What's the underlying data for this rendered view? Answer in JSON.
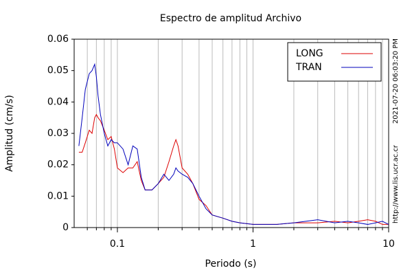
{
  "chart_data": {
    "type": "line",
    "title": "Espectro de amplitud Archivo",
    "xlabel": "Periodo (s)",
    "ylabel": "Amplitud (cm/s)",
    "annotations": [
      "2021-07-20 06:03:20 PM",
      "http://www.lis.ucr.ac.cr"
    ],
    "xscale": "log",
    "grid": true,
    "legend": "upper right",
    "xlim": [
      0.048,
      10
    ],
    "xticks": [
      0.1,
      1,
      10
    ],
    "xminorticks": [
      0.06,
      0.07,
      0.08,
      0.09,
      0.2,
      0.3,
      0.4,
      0.5,
      0.6,
      0.7,
      0.8,
      0.9,
      2,
      3,
      4,
      5,
      6,
      7,
      8,
      9
    ],
    "ylim": [
      0,
      0.06
    ],
    "yticks": [
      0,
      0.01,
      0.02,
      0.03,
      0.04,
      0.05,
      0.06
    ],
    "x": [
      0.052,
      0.055,
      0.058,
      0.062,
      0.065,
      0.068,
      0.07,
      0.072,
      0.075,
      0.08,
      0.085,
      0.09,
      0.095,
      0.1,
      0.11,
      0.12,
      0.13,
      0.14,
      0.15,
      0.16,
      0.18,
      0.2,
      0.22,
      0.24,
      0.26,
      0.27,
      0.28,
      0.3,
      0.33,
      0.36,
      0.4,
      0.45,
      0.5,
      0.6,
      0.7,
      0.8,
      1,
      1.5,
      2,
      3,
      4,
      5,
      6,
      7,
      8,
      9,
      10
    ],
    "series": [
      {
        "name": "LONG",
        "color": "#dd0000",
        "values": [
          0.024,
          0.024,
          0.027,
          0.031,
          0.03,
          0.035,
          0.036,
          0.035,
          0.034,
          0.031,
          0.028,
          0.029,
          0.025,
          0.019,
          0.0175,
          0.019,
          0.019,
          0.021,
          0.015,
          0.012,
          0.012,
          0.014,
          0.016,
          0.021,
          0.026,
          0.028,
          0.026,
          0.019,
          0.017,
          0.014,
          0.009,
          0.007,
          0.004,
          0.003,
          0.002,
          0.0015,
          0.001,
          0.001,
          0.0015,
          0.0015,
          0.002,
          0.0015,
          0.002,
          0.0025,
          0.002,
          0.001,
          0.001
        ]
      },
      {
        "name": "TRAN",
        "color": "#0000bb",
        "values": [
          0.026,
          0.035,
          0.044,
          0.049,
          0.05,
          0.052,
          0.048,
          0.042,
          0.036,
          0.03,
          0.026,
          0.028,
          0.027,
          0.027,
          0.025,
          0.02,
          0.026,
          0.025,
          0.016,
          0.012,
          0.012,
          0.014,
          0.017,
          0.015,
          0.017,
          0.019,
          0.018,
          0.017,
          0.016,
          0.014,
          0.01,
          0.006,
          0.004,
          0.003,
          0.002,
          0.0015,
          0.001,
          0.001,
          0.0015,
          0.0025,
          0.0015,
          0.002,
          0.0015,
          0.001,
          0.0015,
          0.002,
          0.001
        ]
      }
    ]
  }
}
